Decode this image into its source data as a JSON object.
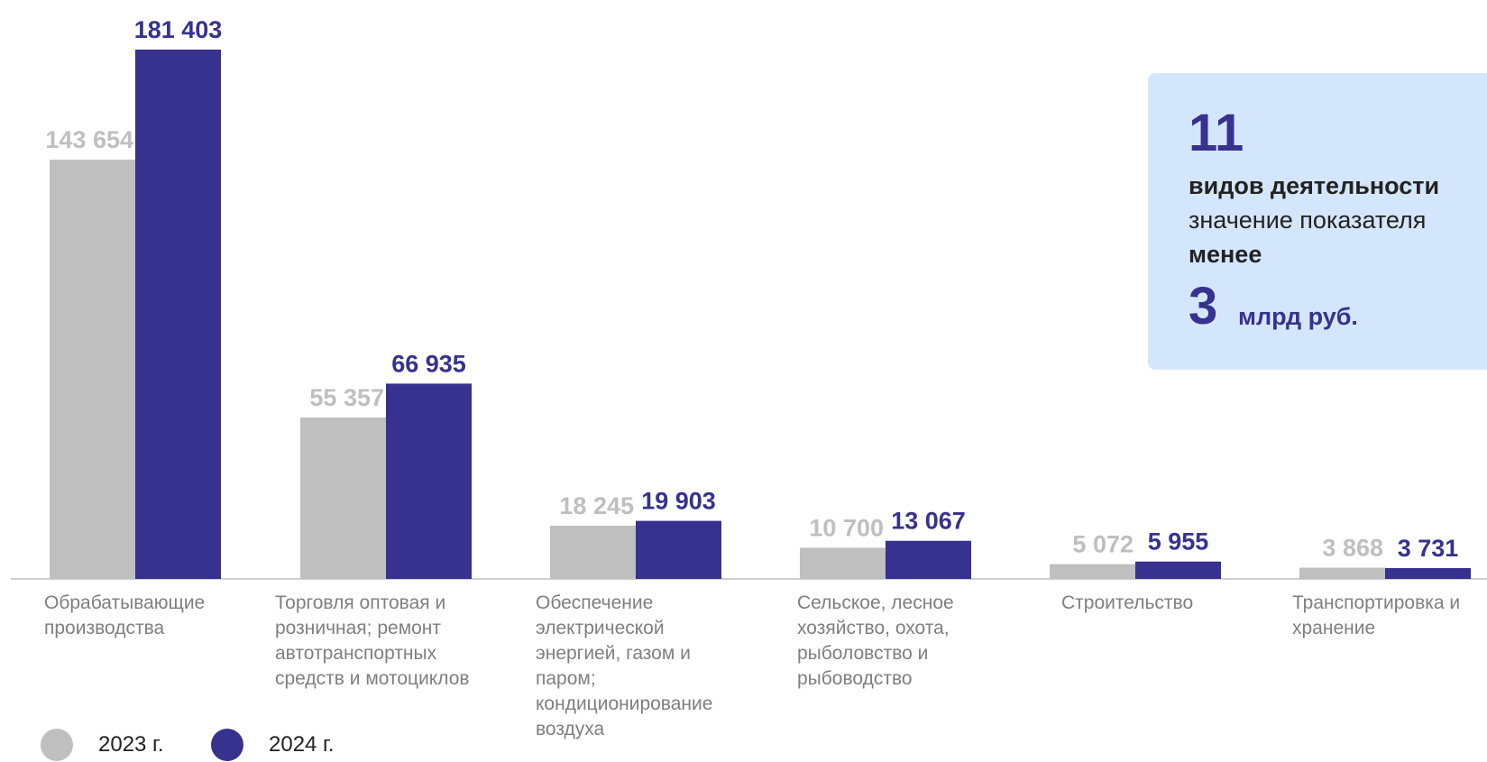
{
  "chart_data": {
    "type": "bar",
    "categories": [
      "Обрабатывающие\nпроизводства",
      "Торговля оптовая и\nрозничная; ремонт\nавтотранспортных\nсредств и мотоциклов",
      "Обеспечение\nэлектрической\nэнергией, газом и\nпаром;\nкондиционирование\nвоздуха",
      "Сельское, лесное\nхозяйство, охота,\nрыболовство и\nрыбоводство",
      "Строительство",
      "Транспортировка и\nхранение"
    ],
    "series": [
      {
        "name": "2023 г.",
        "color": "#bfbfbf",
        "values": [
          143654,
          55357,
          18245,
          10700,
          5072,
          3868
        ],
        "labels": [
          "143 654",
          "55 357",
          "18 245",
          "10 700",
          "5 072",
          "3 868"
        ]
      },
      {
        "name": "2024 г.",
        "color": "#37318f",
        "values": [
          181403,
          66935,
          19903,
          13067,
          5955,
          3731
        ],
        "labels": [
          "181 403",
          "66 935",
          "19 903",
          "13 067",
          "5 955",
          "3 731"
        ]
      }
    ],
    "ylim": [
      0,
      181403
    ],
    "grid": false,
    "legend": "bottom-left"
  },
  "callout": {
    "count": "11",
    "line1": "видов деятельности",
    "line2": "значение показателя",
    "line3": "менее",
    "value": "3",
    "unit": "млрд руб."
  }
}
